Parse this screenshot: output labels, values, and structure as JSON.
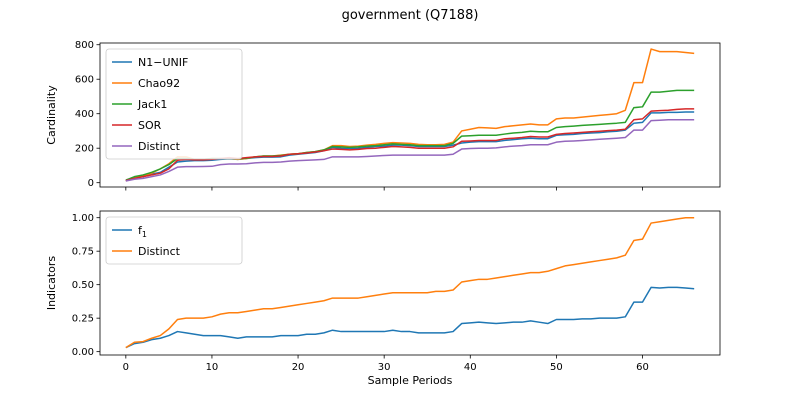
{
  "figure_title": "government (Q7188)",
  "chart_data": [
    {
      "type": "line",
      "ylabel": "Cardinality",
      "xlabel": "",
      "xlim": [
        -3,
        69
      ],
      "ylim": [
        -25,
        810
      ],
      "yticks": [
        0,
        200,
        400,
        600,
        800
      ],
      "xticks": [
        0,
        10,
        20,
        30,
        40,
        50,
        60
      ],
      "show_x_tick_labels": false,
      "legend": "upper-left",
      "grid": false,
      "x": [
        0,
        1,
        2,
        3,
        4,
        5,
        6,
        7,
        8,
        9,
        10,
        11,
        12,
        13,
        14,
        15,
        16,
        17,
        18,
        19,
        20,
        21,
        22,
        23,
        24,
        25,
        26,
        27,
        28,
        29,
        30,
        31,
        32,
        33,
        34,
        35,
        36,
        37,
        38,
        39,
        40,
        41,
        42,
        43,
        44,
        45,
        46,
        47,
        48,
        49,
        50,
        51,
        52,
        53,
        54,
        55,
        56,
        57,
        58,
        59,
        60,
        61,
        62,
        63,
        64,
        65,
        66
      ],
      "series": [
        {
          "name": "N1−UNIF",
          "color": "#1f77b4",
          "values": [
            10,
            30,
            35,
            50,
            60,
            90,
            120,
            125,
            128,
            128,
            130,
            135,
            138,
            135,
            140,
            145,
            148,
            148,
            150,
            160,
            165,
            170,
            175,
            185,
            205,
            200,
            198,
            200,
            205,
            210,
            212,
            218,
            218,
            215,
            210,
            210,
            210,
            210,
            218,
            230,
            235,
            238,
            238,
            238,
            245,
            250,
            255,
            258,
            255,
            255,
            275,
            278,
            280,
            285,
            288,
            290,
            295,
            298,
            305,
            345,
            350,
            405,
            405,
            408,
            408,
            410,
            410
          ]
        },
        {
          "name": "Chao92",
          "color": "#ff7f0e",
          "values": [
            10,
            30,
            40,
            55,
            80,
            110,
            150,
            150,
            135,
            135,
            140,
            140,
            140,
            135,
            140,
            150,
            155,
            155,
            160,
            165,
            168,
            175,
            180,
            190,
            215,
            215,
            210,
            212,
            218,
            222,
            228,
            232,
            230,
            228,
            222,
            220,
            220,
            222,
            235,
            300,
            310,
            320,
            318,
            315,
            325,
            330,
            335,
            340,
            335,
            335,
            370,
            375,
            375,
            380,
            385,
            390,
            395,
            400,
            420,
            580,
            580,
            775,
            760,
            760,
            760,
            755,
            750
          ]
        },
        {
          "name": "Jack1",
          "color": "#2ca02c",
          "values": [
            15,
            35,
            45,
            60,
            80,
            105,
            140,
            140,
            135,
            135,
            140,
            140,
            140,
            138,
            142,
            150,
            155,
            155,
            158,
            165,
            168,
            175,
            180,
            190,
            210,
            208,
            205,
            208,
            212,
            215,
            220,
            225,
            222,
            220,
            215,
            215,
            215,
            215,
            228,
            270,
            272,
            275,
            275,
            275,
            282,
            288,
            292,
            298,
            295,
            295,
            320,
            325,
            328,
            332,
            335,
            338,
            342,
            345,
            350,
            435,
            440,
            525,
            525,
            530,
            535,
            535,
            535
          ]
        },
        {
          "name": "SOR",
          "color": "#d62728",
          "values": [
            12,
            25,
            35,
            45,
            55,
            80,
            130,
            135,
            132,
            132,
            135,
            140,
            145,
            140,
            145,
            150,
            152,
            152,
            155,
            165,
            168,
            172,
            178,
            185,
            195,
            193,
            190,
            193,
            198,
            200,
            205,
            210,
            208,
            205,
            200,
            200,
            200,
            200,
            208,
            240,
            242,
            245,
            245,
            245,
            255,
            258,
            262,
            268,
            265,
            265,
            280,
            285,
            288,
            292,
            295,
            298,
            302,
            305,
            310,
            365,
            370,
            415,
            418,
            420,
            425,
            428,
            428
          ]
        },
        {
          "name": "Distinct",
          "color": "#9467bd",
          "values": [
            10,
            20,
            25,
            35,
            45,
            65,
            90,
            93,
            93,
            94,
            95,
            105,
            108,
            108,
            110,
            115,
            118,
            118,
            120,
            125,
            128,
            130,
            132,
            135,
            150,
            150,
            150,
            150,
            152,
            155,
            158,
            160,
            160,
            160,
            160,
            160,
            160,
            160,
            165,
            195,
            198,
            200,
            200,
            202,
            208,
            212,
            215,
            220,
            220,
            220,
            235,
            240,
            242,
            245,
            248,
            252,
            255,
            258,
            262,
            305,
            305,
            360,
            362,
            365,
            365,
            365,
            365
          ]
        }
      ]
    },
    {
      "type": "line",
      "ylabel": "Indicators",
      "xlabel": "Sample Periods",
      "xlim": [
        -3,
        69
      ],
      "ylim": [
        -0.025,
        1.05
      ],
      "yticks": [
        0.0,
        0.25,
        0.5,
        0.75,
        1.0
      ],
      "ytick_labels": [
        "0.00",
        "0.25",
        "0.50",
        "0.75",
        "1.00"
      ],
      "xticks": [
        0,
        10,
        20,
        30,
        40,
        50,
        60
      ],
      "show_x_tick_labels": true,
      "legend": "upper-left",
      "grid": false,
      "x": [
        0,
        1,
        2,
        3,
        4,
        5,
        6,
        7,
        8,
        9,
        10,
        11,
        12,
        13,
        14,
        15,
        16,
        17,
        18,
        19,
        20,
        21,
        22,
        23,
        24,
        25,
        26,
        27,
        28,
        29,
        30,
        31,
        32,
        33,
        34,
        35,
        36,
        37,
        38,
        39,
        40,
        41,
        42,
        43,
        44,
        45,
        46,
        47,
        48,
        49,
        50,
        51,
        52,
        53,
        54,
        55,
        56,
        57,
        58,
        59,
        60,
        61,
        62,
        63,
        64,
        65,
        66
      ],
      "series": [
        {
          "name": "f",
          "name_subscript": "1",
          "color": "#1f77b4",
          "values": [
            0.03,
            0.06,
            0.07,
            0.09,
            0.1,
            0.12,
            0.15,
            0.14,
            0.13,
            0.12,
            0.12,
            0.12,
            0.11,
            0.1,
            0.11,
            0.11,
            0.11,
            0.11,
            0.12,
            0.12,
            0.12,
            0.13,
            0.13,
            0.14,
            0.16,
            0.15,
            0.15,
            0.15,
            0.15,
            0.15,
            0.15,
            0.16,
            0.15,
            0.15,
            0.14,
            0.14,
            0.14,
            0.14,
            0.15,
            0.21,
            0.215,
            0.22,
            0.215,
            0.21,
            0.215,
            0.22,
            0.22,
            0.23,
            0.22,
            0.21,
            0.24,
            0.24,
            0.24,
            0.245,
            0.245,
            0.25,
            0.25,
            0.25,
            0.26,
            0.37,
            0.37,
            0.48,
            0.475,
            0.48,
            0.48,
            0.475,
            0.47
          ]
        },
        {
          "name": "Distinct",
          "color": "#ff7f0e",
          "values": [
            0.03,
            0.07,
            0.075,
            0.1,
            0.12,
            0.17,
            0.24,
            0.25,
            0.25,
            0.25,
            0.26,
            0.28,
            0.29,
            0.29,
            0.3,
            0.31,
            0.32,
            0.32,
            0.33,
            0.34,
            0.35,
            0.36,
            0.37,
            0.38,
            0.4,
            0.4,
            0.4,
            0.4,
            0.41,
            0.42,
            0.43,
            0.44,
            0.44,
            0.44,
            0.44,
            0.44,
            0.45,
            0.45,
            0.46,
            0.52,
            0.53,
            0.54,
            0.54,
            0.55,
            0.56,
            0.57,
            0.58,
            0.59,
            0.59,
            0.6,
            0.62,
            0.64,
            0.65,
            0.66,
            0.67,
            0.68,
            0.69,
            0.7,
            0.72,
            0.83,
            0.84,
            0.96,
            0.97,
            0.98,
            0.99,
            1.0,
            1.0
          ]
        }
      ]
    }
  ]
}
